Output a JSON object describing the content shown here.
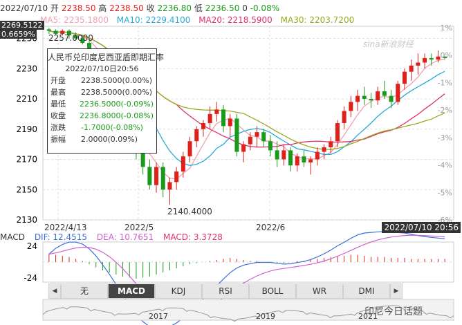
{
  "header": {
    "date": "2022/07/10",
    "open_label": "开",
    "open": "2238.50",
    "high_label": "高",
    "high": "2238.50",
    "close_label": "收",
    "close": "2236.80",
    "low_label": "低",
    "low": "2236.50",
    "volume": "0",
    "change_pct": "-0.08%"
  },
  "ma_legend": [
    {
      "label": "MA5: 2235.1800",
      "color": "#f0a0b0"
    },
    {
      "label": "MA10: 2229.4100",
      "color": "#29a8d8"
    },
    {
      "label": "MA20: 2218.5900",
      "color": "#e0306a"
    },
    {
      "label": "MA30: 2203.7200",
      "color": "#99a81e"
    }
  ],
  "current": {
    "price": "2269.5122",
    "pct": "0.6659%",
    "date": "2022/07/10 20:56"
  },
  "annotations": {
    "high": "2257.0000",
    "low": "2140.4000"
  },
  "watermark": "sina新浪财经",
  "tooltip": {
    "title": "人民币兑印度尼西亚盾即期汇率",
    "datetime": "2022/07/10日20:56",
    "rows": [
      {
        "k": "开盘",
        "v": "2238.5000(0.00%)",
        "cls": ""
      },
      {
        "k": "最高",
        "v": "2238.5000(0.00%)",
        "cls": ""
      },
      {
        "k": "最低",
        "v": "2236.5000(-0.09%)",
        "cls": "green"
      },
      {
        "k": "收盘",
        "v": "2236.8000(-0.08%)",
        "cls": "green"
      },
      {
        "k": "涨跌",
        "v": "-1.7000(-0.08%)",
        "cls": "green"
      },
      {
        "k": "振幅",
        "v": "2.0000(0.09%)",
        "cls": ""
      }
    ]
  },
  "macd_legend": {
    "name": "MACD",
    "dif": "DIF: 12.4515",
    "dea": "DEA: 10.7651",
    "macd": "MACD: 3.3728",
    "dif_color": "#3a6fd8",
    "dea_color": "#d060d0",
    "macd_color": "#e0306a"
  },
  "tabs": [
    "无",
    "MACD",
    "KDJ",
    "RSI",
    "BOLL",
    "WR",
    "DMI"
  ],
  "active_tab": "MACD",
  "overview_years": [
    "2017",
    "2019",
    "2021"
  ],
  "brand": "印尼今日话题",
  "chart_data": {
    "type": "candlestick",
    "y_ticks": [
      2250,
      2230,
      2210,
      2190,
      2170,
      2150,
      2130
    ],
    "pct_ticks": [
      "1%",
      "0%",
      "-1%",
      "-2%",
      "-3%",
      "-4%",
      "-5%",
      "-6%"
    ],
    "x_ticks": [
      "2022/4/13",
      "2022/5",
      "2022/6"
    ],
    "ylim": [
      2130,
      2258
    ],
    "macd_ticks": [
      "24",
      "-24"
    ],
    "candles": [
      [
        2256,
        2257,
        2253,
        2255
      ],
      [
        2255,
        2256,
        2252,
        2253
      ],
      [
        2253,
        2256,
        2252,
        2255
      ],
      [
        2255,
        2256,
        2250,
        2252
      ],
      [
        2252,
        2254,
        2249,
        2250
      ],
      [
        2250,
        2252,
        2246,
        2247
      ],
      [
        2247,
        2249,
        2238,
        2240
      ],
      [
        2240,
        2243,
        2230,
        2232
      ],
      [
        2232,
        2236,
        2222,
        2224
      ],
      [
        2224,
        2228,
        2210,
        2212
      ],
      [
        2212,
        2218,
        2200,
        2205
      ],
      [
        2205,
        2210,
        2190,
        2195
      ],
      [
        2195,
        2198,
        2180,
        2182
      ],
      [
        2182,
        2186,
        2170,
        2174
      ],
      [
        2174,
        2178,
        2160,
        2165
      ],
      [
        2165,
        2170,
        2150,
        2153
      ],
      [
        2153,
        2168,
        2148,
        2165
      ],
      [
        2165,
        2168,
        2145,
        2150
      ],
      [
        2150,
        2158,
        2140,
        2155
      ],
      [
        2155,
        2165,
        2150,
        2162
      ],
      [
        2162,
        2175,
        2158,
        2172
      ],
      [
        2172,
        2185,
        2168,
        2182
      ],
      [
        2182,
        2192,
        2178,
        2190
      ],
      [
        2190,
        2196,
        2185,
        2194
      ],
      [
        2194,
        2205,
        2190,
        2200
      ],
      [
        2200,
        2208,
        2195,
        2203
      ],
      [
        2203,
        2206,
        2188,
        2192
      ],
      [
        2192,
        2200,
        2185,
        2197
      ],
      [
        2197,
        2200,
        2172,
        2175
      ],
      [
        2175,
        2182,
        2168,
        2180
      ],
      [
        2180,
        2188,
        2176,
        2185
      ],
      [
        2185,
        2192,
        2178,
        2188
      ],
      [
        2188,
        2190,
        2178,
        2182
      ],
      [
        2182,
        2186,
        2172,
        2176
      ],
      [
        2176,
        2182,
        2165,
        2170
      ],
      [
        2170,
        2180,
        2166,
        2176
      ],
      [
        2176,
        2178,
        2162,
        2166
      ],
      [
        2166,
        2174,
        2162,
        2172
      ],
      [
        2172,
        2176,
        2165,
        2168
      ],
      [
        2168,
        2172,
        2160,
        2170
      ],
      [
        2170,
        2178,
        2166,
        2175
      ],
      [
        2175,
        2180,
        2170,
        2178
      ],
      [
        2178,
        2185,
        2174,
        2182
      ],
      [
        2182,
        2196,
        2178,
        2194
      ],
      [
        2194,
        2205,
        2190,
        2202
      ],
      [
        2202,
        2212,
        2198,
        2208
      ],
      [
        2208,
        2216,
        2202,
        2212
      ],
      [
        2212,
        2218,
        2206,
        2210
      ],
      [
        2210,
        2214,
        2204,
        2209
      ],
      [
        2209,
        2218,
        2206,
        2215
      ],
      [
        2215,
        2222,
        2210,
        2212
      ],
      [
        2212,
        2216,
        2204,
        2208
      ],
      [
        2208,
        2222,
        2206,
        2220
      ],
      [
        2220,
        2230,
        2216,
        2228
      ],
      [
        2228,
        2236,
        2222,
        2232
      ],
      [
        2232,
        2240,
        2226,
        2234
      ],
      [
        2234,
        2240,
        2230,
        2237
      ],
      [
        2237,
        2240,
        2232,
        2236
      ],
      [
        2236,
        2242,
        2234,
        2238
      ],
      [
        2238,
        2238,
        2236,
        2237
      ]
    ],
    "macd_hist": [
      8,
      7,
      6,
      5,
      3,
      1,
      -2,
      -5,
      -8,
      -10,
      -12,
      -14,
      -15,
      -16,
      -15,
      -14,
      -12,
      -10,
      -8,
      -6,
      -4,
      -2,
      -1,
      0,
      1,
      2,
      3,
      4,
      3,
      2,
      1,
      1,
      0,
      0,
      -1,
      -1,
      0,
      1,
      1,
      2,
      3,
      4,
      5,
      6,
      6,
      7,
      7,
      6,
      5,
      5,
      5,
      4,
      4,
      4,
      3,
      3,
      3,
      3,
      3,
      3
    ]
  }
}
